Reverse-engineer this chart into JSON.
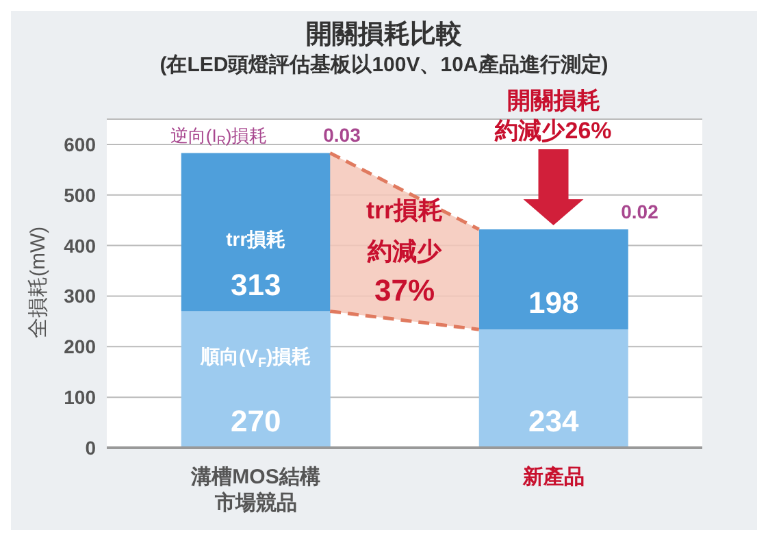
{
  "chart_data": {
    "type": "bar",
    "title": "開關損耗比較",
    "subtitle": "(在LED頭燈評估基板以100V、10A產品進行測定)",
    "ylabel": "全損耗(mW)",
    "categories": [
      "溝槽MOS結構市場競品",
      "新產品"
    ],
    "series": [
      {
        "name": "順向(V$_{F}$)損耗",
        "color": "#9dcbef",
        "values": [
          270,
          234
        ]
      },
      {
        "name": "trr損耗",
        "color": "#4f9fdb",
        "values": [
          313,
          198
        ]
      },
      {
        "name": "逆向(I$_{R}$)損耗",
        "color": "#a8478f",
        "values": [
          0.03,
          0.02
        ]
      }
    ],
    "stacked": true,
    "data_labels": true,
    "grid": "y",
    "ylim": [
      0,
      650
    ],
    "yticks": [
      0,
      100,
      200,
      300,
      400,
      500,
      600
    ],
    "annotations": [
      "trr損耗",
      "約減少",
      "37%",
      "開關損耗",
      "約減少26%"
    ]
  }
}
